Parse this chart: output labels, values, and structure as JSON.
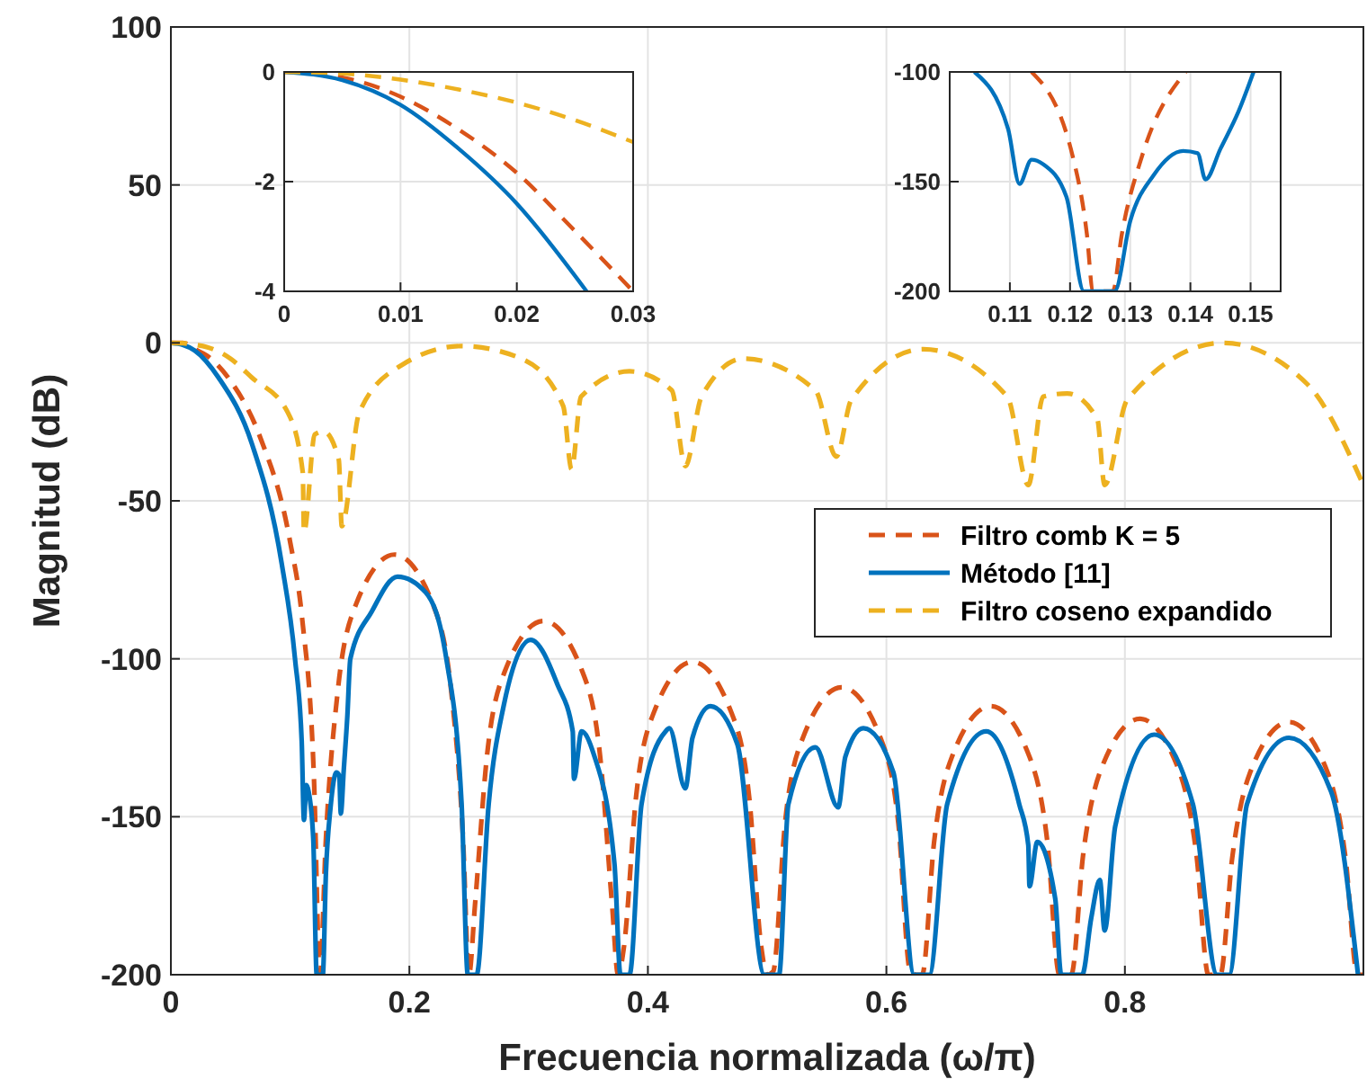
{
  "chart_data": [
    {
      "type": "line",
      "xlabel": "Frecuencia normalizada (ω/π)",
      "ylabel": "Magnitud (dB)",
      "xlim": [
        0,
        1
      ],
      "ylim": [
        -200,
        100
      ],
      "xticks": [
        0,
        0.2,
        0.4,
        0.6,
        0.8
      ],
      "yticks": [
        -200,
        -150,
        -100,
        -50,
        0,
        50,
        100
      ],
      "grid": true,
      "legend": "right",
      "series": [
        {
          "name": "Filtro comb K = 5",
          "color": "#d95319",
          "line_style": "dashed",
          "x": [
            0,
            0.01,
            0.02,
            0.03,
            0.05,
            0.075,
            0.1,
            0.11,
            0.12,
            0.125,
            0.13,
            0.14,
            0.155,
            0.1875,
            0.22,
            0.235,
            0.245,
            0.25,
            0.255,
            0.265,
            0.28,
            0.3125,
            0.345,
            0.36,
            0.37,
            0.375,
            0.38,
            0.39,
            0.405,
            0.4375,
            0.47,
            0.485,
            0.495,
            0.5,
            0.505,
            0.515,
            0.53,
            0.5625,
            0.595,
            0.61,
            0.62,
            0.625,
            0.63,
            0.64,
            0.655,
            0.6875,
            0.72,
            0.735,
            0.745,
            0.75,
            0.755,
            0.765,
            0.78,
            0.8125,
            0.845,
            0.86,
            0.87,
            0.875,
            0.88,
            0.89,
            0.905,
            0.9375,
            0.97,
            0.985,
            0.995,
            1
          ],
          "values": [
            0,
            0,
            -2,
            -4,
            -12,
            -30,
            -63,
            -87,
            -138,
            -200,
            -157,
            -110,
            -83,
            -67,
            -83,
            -110,
            -157,
            -200,
            -178,
            -131,
            -104,
            -88,
            -104,
            -131,
            -178,
            -200,
            -191,
            -144,
            -117,
            -101,
            -117,
            -144,
            -191,
            -200,
            -199,
            -152,
            -125,
            -109,
            -125,
            -152,
            -199,
            -200,
            -200,
            -158,
            -131,
            -115,
            -131,
            -158,
            -200,
            -200,
            -200,
            -162,
            -135,
            -119,
            -135,
            -162,
            -200,
            -200,
            -200,
            -163,
            -136,
            -120,
            -136,
            -163,
            -200,
            -200
          ]
        },
        {
          "name": "Método [11]",
          "color": "#0072bd",
          "line_style": "solid",
          "x": [
            0,
            0.01,
            0.02,
            0.04,
            0.068,
            0.093,
            0.1041,
            0.1097,
            0.1116,
            0.1136,
            0.1155,
            0.1194,
            0.1223,
            0.1274,
            0.13,
            0.1339,
            0.1388,
            0.1412,
            0.1425,
            0.145,
            0.148,
            0.1505,
            0.1685,
            0.19,
            0.2137,
            0.231,
            0.2438,
            0.249,
            0.2564,
            0.2665,
            0.279,
            0.3017,
            0.324,
            0.337,
            0.338,
            0.3444,
            0.3544,
            0.372,
            0.377,
            0.3846,
            0.3947,
            0.4148,
            0.418,
            0.4314,
            0.4374,
            0.4525,
            0.475,
            0.4977,
            0.51,
            0.5178,
            0.5405,
            0.5596,
            0.5656,
            0.5807,
            0.6059,
            0.6234,
            0.636,
            0.651,
            0.6837,
            0.7114,
            0.719,
            0.72,
            0.7265,
            0.7416,
            0.7466,
            0.7642,
            0.7718,
            0.779,
            0.783,
            0.7919,
            0.8245,
            0.857,
            0.8774,
            0.8874,
            0.9024,
            0.9376,
            0.9729,
            0.9955
          ],
          "values": [
            0,
            -0.6,
            -2.4,
            -11,
            -32,
            -70,
            -100,
            -126,
            -151,
            -140,
            -142,
            -157,
            -200,
            -200,
            -168,
            -147,
            -136,
            -137,
            -149,
            -135,
            -118,
            -100,
            -85,
            -74,
            -79,
            -100,
            -146,
            -200,
            -200,
            -146,
            -115,
            -94,
            -108,
            -123,
            -138,
            -123,
            -130,
            -165,
            -200,
            -200,
            -146,
            -123,
            -122,
            -141,
            -125,
            -115,
            -127,
            -200,
            -200,
            -146,
            -128,
            -147,
            -131,
            -122,
            -136,
            -200,
            -200,
            -146,
            -123,
            -146,
            -159,
            -172,
            -158,
            -176,
            -200,
            -200,
            -182,
            -170,
            -186,
            -153,
            -124,
            -146,
            -200,
            -200,
            -146,
            -125,
            -142,
            -200
          ]
        },
        {
          "name": "Filtro coseno expandido",
          "color": "#edb120",
          "line_style": "dashed",
          "x": [
            0,
            0.01,
            0.02,
            0.03,
            0.05,
            0.068,
            0.098,
            0.1106,
            0.1116,
            0.1207,
            0.128,
            0.1408,
            0.1433,
            0.158,
            0.1936,
            0.2438,
            0.294,
            0.329,
            0.336,
            0.344,
            0.3846,
            0.42,
            0.4314,
            0.445,
            0.48,
            0.5405,
            0.558,
            0.5706,
            0.631,
            0.7014,
            0.719,
            0.7315,
            0.7516,
            0.7768,
            0.783,
            0.802,
            0.8823,
            0.9528,
            1
          ],
          "values": [
            0,
            -0.1,
            -0.6,
            -1.3,
            -5,
            -11,
            -22,
            -41,
            -60,
            -29,
            -28,
            -37,
            -58,
            -22,
            -7,
            -1,
            -5,
            -20,
            -40,
            -17,
            -9,
            -15,
            -39,
            -17,
            -5,
            -15,
            -36,
            -18,
            -2,
            -17,
            -45,
            -17,
            -16,
            -24,
            -45,
            -18,
            0,
            -13,
            -45
          ]
        }
      ]
    },
    {
      "type": "line",
      "xlim": [
        0,
        0.03
      ],
      "ylim": [
        -4,
        0
      ],
      "xticks": [
        0,
        0.01,
        0.02,
        0.03
      ],
      "yticks": [
        -4,
        -2,
        0
      ],
      "grid": true,
      "series": [
        {
          "color": "#d95319",
          "line_style": "dashed",
          "x": [
            0,
            0.005,
            0.01,
            0.015,
            0.02,
            0.025,
            0.03
          ],
          "values": [
            0,
            -0.1,
            -0.45,
            -1.05,
            -1.84,
            -2.9,
            -4
          ]
        },
        {
          "color": "#0072bd",
          "line_style": "solid",
          "x": [
            0,
            0.005,
            0.01,
            0.015,
            0.02,
            0.026
          ],
          "values": [
            0,
            -0.15,
            -0.6,
            -1.4,
            -2.4,
            -4
          ]
        },
        {
          "color": "#edb120",
          "line_style": "dashed",
          "x": [
            0,
            0.005,
            0.01,
            0.015,
            0.02,
            0.025,
            0.03
          ],
          "values": [
            0,
            -0.03,
            -0.14,
            -0.32,
            -0.56,
            -0.88,
            -1.28
          ]
        }
      ]
    },
    {
      "type": "line",
      "xlim": [
        0.1,
        0.155
      ],
      "ylim": [
        -200,
        -100
      ],
      "xticks": [
        0.11,
        0.12,
        0.13,
        0.14,
        0.15
      ],
      "yticks": [
        -200,
        -150,
        -100
      ],
      "grid": true,
      "series": [
        {
          "color": "#d95319",
          "line_style": "dashed",
          "x": [
            0.1136,
            0.1204,
            0.1228,
            0.1238,
            0.1271,
            0.1286,
            0.132,
            0.1392
          ],
          "values": [
            -100,
            -138,
            -174,
            -200,
            -200,
            -174,
            -138,
            -100
          ]
        },
        {
          "color": "#0072bd",
          "line_style": "solid",
          "x": [
            0.1041,
            0.1097,
            0.1116,
            0.1136,
            0.1155,
            0.1194,
            0.1223,
            0.1274,
            0.13,
            0.1339,
            0.1388,
            0.1412,
            0.1425,
            0.145,
            0.148,
            0.1505
          ],
          "values": [
            -100,
            -126,
            -151,
            -140,
            -142,
            -157,
            -200,
            -200,
            -168,
            -147,
            -136,
            -137,
            -149,
            -135,
            -118,
            -100
          ]
        }
      ]
    }
  ]
}
